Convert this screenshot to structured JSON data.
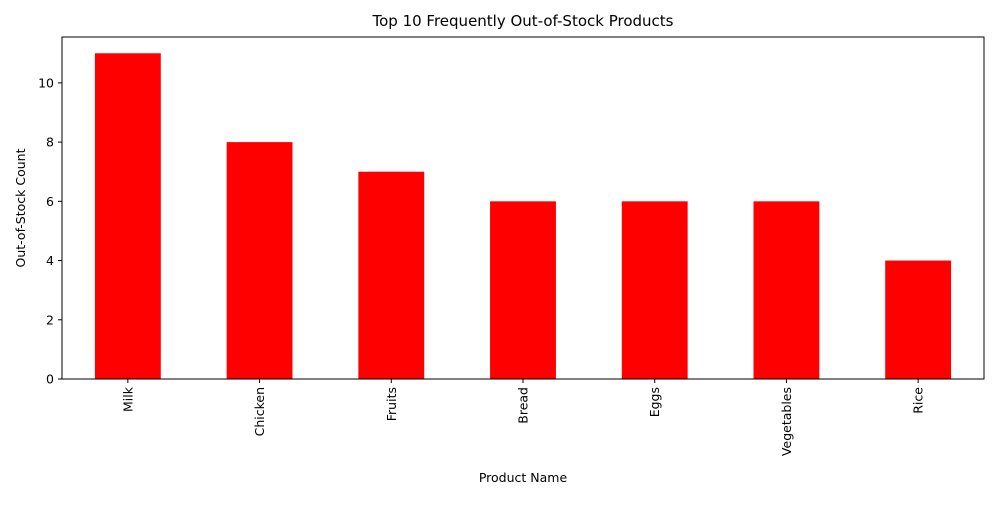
{
  "chart_data": {
    "type": "bar",
    "title": "Top 10 Frequently Out-of-Stock Products",
    "xlabel": "Product Name",
    "ylabel": "Out-of-Stock Count",
    "categories": [
      "Milk",
      "Chicken",
      "Fruits",
      "Bread",
      "Eggs",
      "Vegetables",
      "Rice"
    ],
    "values": [
      11,
      8,
      7,
      6,
      6,
      6,
      4
    ],
    "ylim": [
      0,
      11.55
    ],
    "yticks": [
      "0",
      "2",
      "4",
      "6",
      "8",
      "10"
    ],
    "bar_color": "#ff0000",
    "grid": false,
    "legend": "none",
    "tick_label_rotation_x": "vertical"
  }
}
